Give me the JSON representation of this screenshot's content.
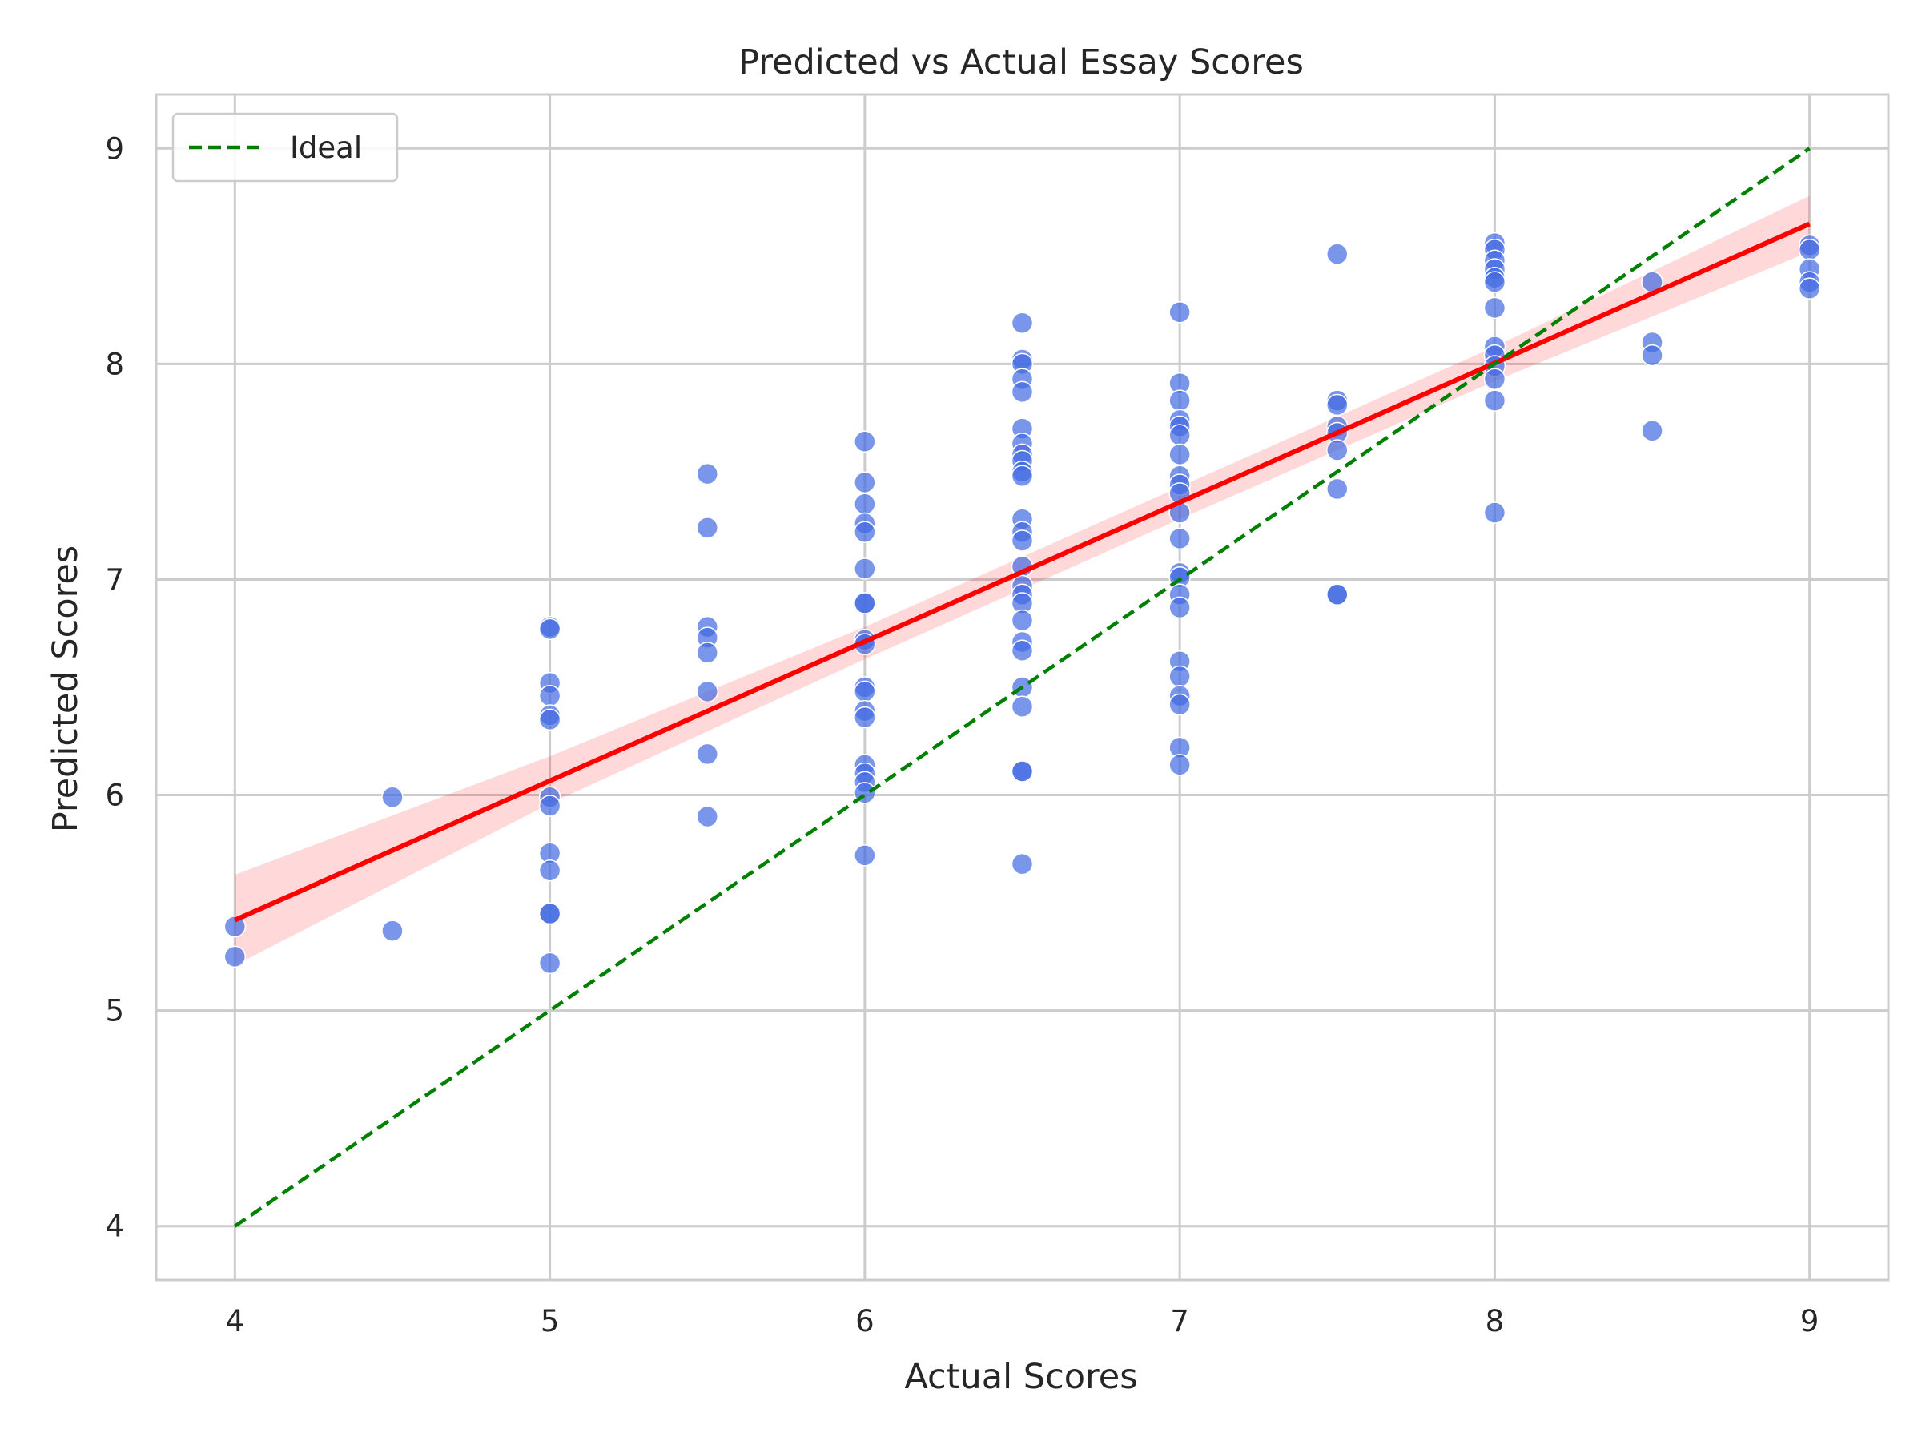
{
  "chart_data": {
    "type": "scatter",
    "title": "Predicted vs Actual Essay Scores",
    "xlabel": "Actual Scores",
    "ylabel": "Predicted Scores",
    "xlim": [
      3.75,
      9.25
    ],
    "ylim": [
      3.75,
      9.25
    ],
    "xticks": [
      4,
      5,
      6,
      7,
      8,
      9
    ],
    "yticks": [
      4,
      5,
      6,
      7,
      8,
      9
    ],
    "grid": true,
    "legend_position": "top-left",
    "colors": {
      "points": "#4169e1",
      "regression": "#ff0000",
      "confidence_band": "#ff0000",
      "ideal": "#008000",
      "grid": "#cccccc",
      "frame": "#cccccc"
    },
    "legend": [
      {
        "label": "Ideal",
        "style": "dashed",
        "color": "#008000"
      }
    ],
    "ideal_line": {
      "x": [
        4,
        9
      ],
      "y": [
        4,
        9
      ]
    },
    "regression_line": {
      "x": [
        4,
        9
      ],
      "y": [
        5.42,
        8.65
      ]
    },
    "confidence_band": {
      "x": [
        4,
        5,
        6,
        7,
        8,
        9
      ],
      "upper": [
        5.63,
        6.18,
        6.78,
        7.43,
        8.08,
        8.78
      ],
      "lower": [
        5.21,
        5.96,
        6.63,
        7.28,
        7.92,
        8.52
      ]
    },
    "points": [
      [
        4.0,
        5.39
      ],
      [
        4.0,
        5.25
      ],
      [
        4.5,
        5.99
      ],
      [
        4.5,
        5.37
      ],
      [
        5.0,
        6.78
      ],
      [
        5.0,
        6.77
      ],
      [
        5.0,
        6.52
      ],
      [
        5.0,
        6.46
      ],
      [
        5.0,
        6.37
      ],
      [
        5.0,
        6.35
      ],
      [
        5.0,
        5.99
      ],
      [
        5.0,
        5.95
      ],
      [
        5.0,
        5.73
      ],
      [
        5.0,
        5.65
      ],
      [
        5.0,
        5.45
      ],
      [
        5.0,
        5.45
      ],
      [
        5.0,
        5.22
      ],
      [
        5.5,
        7.49
      ],
      [
        5.5,
        7.24
      ],
      [
        5.5,
        6.78
      ],
      [
        5.5,
        6.73
      ],
      [
        5.5,
        6.66
      ],
      [
        5.5,
        6.48
      ],
      [
        5.5,
        6.19
      ],
      [
        5.5,
        5.9
      ],
      [
        6.0,
        7.64
      ],
      [
        6.0,
        7.45
      ],
      [
        6.0,
        7.35
      ],
      [
        6.0,
        7.26
      ],
      [
        6.0,
        7.22
      ],
      [
        6.0,
        7.05
      ],
      [
        6.0,
        6.89
      ],
      [
        6.0,
        6.89
      ],
      [
        6.0,
        6.72
      ],
      [
        6.0,
        6.7
      ],
      [
        6.0,
        6.5
      ],
      [
        6.0,
        6.48
      ],
      [
        6.0,
        6.39
      ],
      [
        6.0,
        6.36
      ],
      [
        6.0,
        6.14
      ],
      [
        6.0,
        6.1
      ],
      [
        6.0,
        6.06
      ],
      [
        6.0,
        6.01
      ],
      [
        6.0,
        5.72
      ],
      [
        6.5,
        8.19
      ],
      [
        6.5,
        8.02
      ],
      [
        6.5,
        8.0
      ],
      [
        6.5,
        7.93
      ],
      [
        6.5,
        7.87
      ],
      [
        6.5,
        7.7
      ],
      [
        6.5,
        7.63
      ],
      [
        6.5,
        7.58
      ],
      [
        6.5,
        7.55
      ],
      [
        6.5,
        7.5
      ],
      [
        6.5,
        7.48
      ],
      [
        6.5,
        7.28
      ],
      [
        6.5,
        7.22
      ],
      [
        6.5,
        7.18
      ],
      [
        6.5,
        7.06
      ],
      [
        6.5,
        6.97
      ],
      [
        6.5,
        6.93
      ],
      [
        6.5,
        6.89
      ],
      [
        6.5,
        6.81
      ],
      [
        6.5,
        6.71
      ],
      [
        6.5,
        6.67
      ],
      [
        6.5,
        6.5
      ],
      [
        6.5,
        6.41
      ],
      [
        6.5,
        6.11
      ],
      [
        6.5,
        6.11
      ],
      [
        6.5,
        5.68
      ],
      [
        7.0,
        8.24
      ],
      [
        7.0,
        7.91
      ],
      [
        7.0,
        7.83
      ],
      [
        7.0,
        7.74
      ],
      [
        7.0,
        7.71
      ],
      [
        7.0,
        7.67
      ],
      [
        7.0,
        7.58
      ],
      [
        7.0,
        7.48
      ],
      [
        7.0,
        7.44
      ],
      [
        7.0,
        7.4
      ],
      [
        7.0,
        7.31
      ],
      [
        7.0,
        7.19
      ],
      [
        7.0,
        7.03
      ],
      [
        7.0,
        7.01
      ],
      [
        7.0,
        6.93
      ],
      [
        7.0,
        6.87
      ],
      [
        7.0,
        6.62
      ],
      [
        7.0,
        6.55
      ],
      [
        7.0,
        6.46
      ],
      [
        7.0,
        6.42
      ],
      [
        7.0,
        6.22
      ],
      [
        7.0,
        6.14
      ],
      [
        7.5,
        8.51
      ],
      [
        7.5,
        7.83
      ],
      [
        7.5,
        7.81
      ],
      [
        7.5,
        7.71
      ],
      [
        7.5,
        7.68
      ],
      [
        7.5,
        7.6
      ],
      [
        7.5,
        7.42
      ],
      [
        7.5,
        6.93
      ],
      [
        7.5,
        6.93
      ],
      [
        8.0,
        8.56
      ],
      [
        8.0,
        8.53
      ],
      [
        8.0,
        8.48
      ],
      [
        8.0,
        8.44
      ],
      [
        8.0,
        8.4
      ],
      [
        8.0,
        8.38
      ],
      [
        8.0,
        8.26
      ],
      [
        8.0,
        8.08
      ],
      [
        8.0,
        8.04
      ],
      [
        8.0,
        7.99
      ],
      [
        8.0,
        7.93
      ],
      [
        8.0,
        7.83
      ],
      [
        8.0,
        7.31
      ],
      [
        8.5,
        8.38
      ],
      [
        8.5,
        8.1
      ],
      [
        8.5,
        8.04
      ],
      [
        8.5,
        7.69
      ],
      [
        9.0,
        8.55
      ],
      [
        9.0,
        8.53
      ],
      [
        9.0,
        8.44
      ],
      [
        9.0,
        8.38
      ],
      [
        9.0,
        8.35
      ]
    ]
  }
}
